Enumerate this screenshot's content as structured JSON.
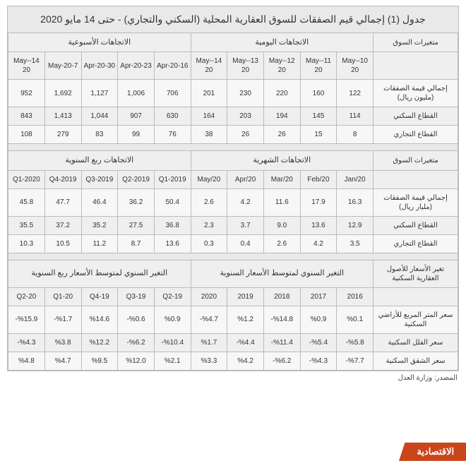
{
  "title": "جدول (1) إجمالي قيم الصفقات للسوق العقارية المحلية (السكني والتجاري) - حتى 14 مايو 2020",
  "source": "المصدر: وزارة العدل",
  "logo": "الاقتصادية",
  "block1": {
    "hdr_right": "الاتجاهات اليومية",
    "hdr_left": "الاتجاهات الأسبوعية",
    "row_label": "متغيرات السوق",
    "cols": [
      "14-May-20",
      "7-May-20",
      "30-Apr-20",
      "23-Apr-20",
      "16-Apr-20",
      "14-May-20",
      "13-May-20",
      "12-May-20",
      "11-May-20",
      "10-May-20"
    ],
    "rows": [
      {
        "label": "إجمالي قيمة الصفقات (مليون ريال)",
        "v": [
          "952",
          "1,692",
          "1,127",
          "1,006",
          "706",
          "201",
          "230",
          "220",
          "160",
          "122"
        ]
      },
      {
        "label": "القطاع السكني",
        "v": [
          "843",
          "1,413",
          "1,044",
          "907",
          "630",
          "164",
          "203",
          "194",
          "145",
          "114"
        ]
      },
      {
        "label": "القطاع التجاري",
        "v": [
          "108",
          "279",
          "83",
          "99",
          "76",
          "38",
          "26",
          "26",
          "15",
          "8"
        ]
      }
    ]
  },
  "block2": {
    "hdr_right": "الاتجاهات الشهرية",
    "hdr_left": "الاتجاهات ربع السنوية",
    "row_label": "متغيرات السوق",
    "cols": [
      "2020-Q1",
      "2019-Q4",
      "2019-Q3",
      "2019-Q2",
      "2019-Q1",
      "May/20",
      "Apr/20",
      "Mar/20",
      "Feb/20",
      "Jan/20"
    ],
    "rows": [
      {
        "label": "إجمالي قيمة الصفقات (مليار ريال)",
        "v": [
          "45.8",
          "47.7",
          "46.4",
          "36.2",
          "50.4",
          "2.6",
          "4.2",
          "11.6",
          "17.9",
          "16.3"
        ]
      },
      {
        "label": "القطاع السكني",
        "v": [
          "35.5",
          "37.2",
          "35.2",
          "27.5",
          "36.8",
          "2.3",
          "3.7",
          "9.0",
          "13.6",
          "12.9"
        ]
      },
      {
        "label": "القطاع التجاري",
        "v": [
          "10.3",
          "10.5",
          "11.2",
          "8.7",
          "13.6",
          "0.3",
          "0.4",
          "2.6",
          "4.2",
          "3.5"
        ]
      }
    ]
  },
  "block3": {
    "hdr_right": "التغير السنوي لمتوسط الأسعار السنوية",
    "hdr_left": "التغير السنوي لمتوسط الأسعار ربع السنوية",
    "row_label": "تغير الأسعار للأصول العقارية السكنية",
    "cols": [
      "20-Q2",
      "20-Q1",
      "19-Q4",
      "19-Q3",
      "19-Q2",
      "2020",
      "2019",
      "2018",
      "2017",
      "2016"
    ],
    "rows": [
      {
        "label": "سعر المتر المربع للأراضي السكنية",
        "v": [
          "%15.9-",
          "%1.7-",
          "%14.6",
          "%0.6-",
          "%0.9",
          "%4.7-",
          "%1.2",
          "%14.8-",
          "%0.9",
          "%0.1"
        ]
      },
      {
        "label": "سعر الفلل السكنية",
        "v": [
          "%4.3-",
          "%3.8",
          "%12.2",
          "%6.2-",
          "%10.4-",
          "%1.7",
          "%4.4-",
          "%11.4-",
          "%5.4-",
          "%5.8-"
        ]
      },
      {
        "label": "سعر الشقق السكنية",
        "v": [
          "%4.8",
          "%4.7",
          "%9.5",
          "%12.0",
          "%2.1",
          "%3.3",
          "%4.2",
          "%6.2-",
          "%4.3-",
          "%7.7-"
        ]
      }
    ]
  }
}
